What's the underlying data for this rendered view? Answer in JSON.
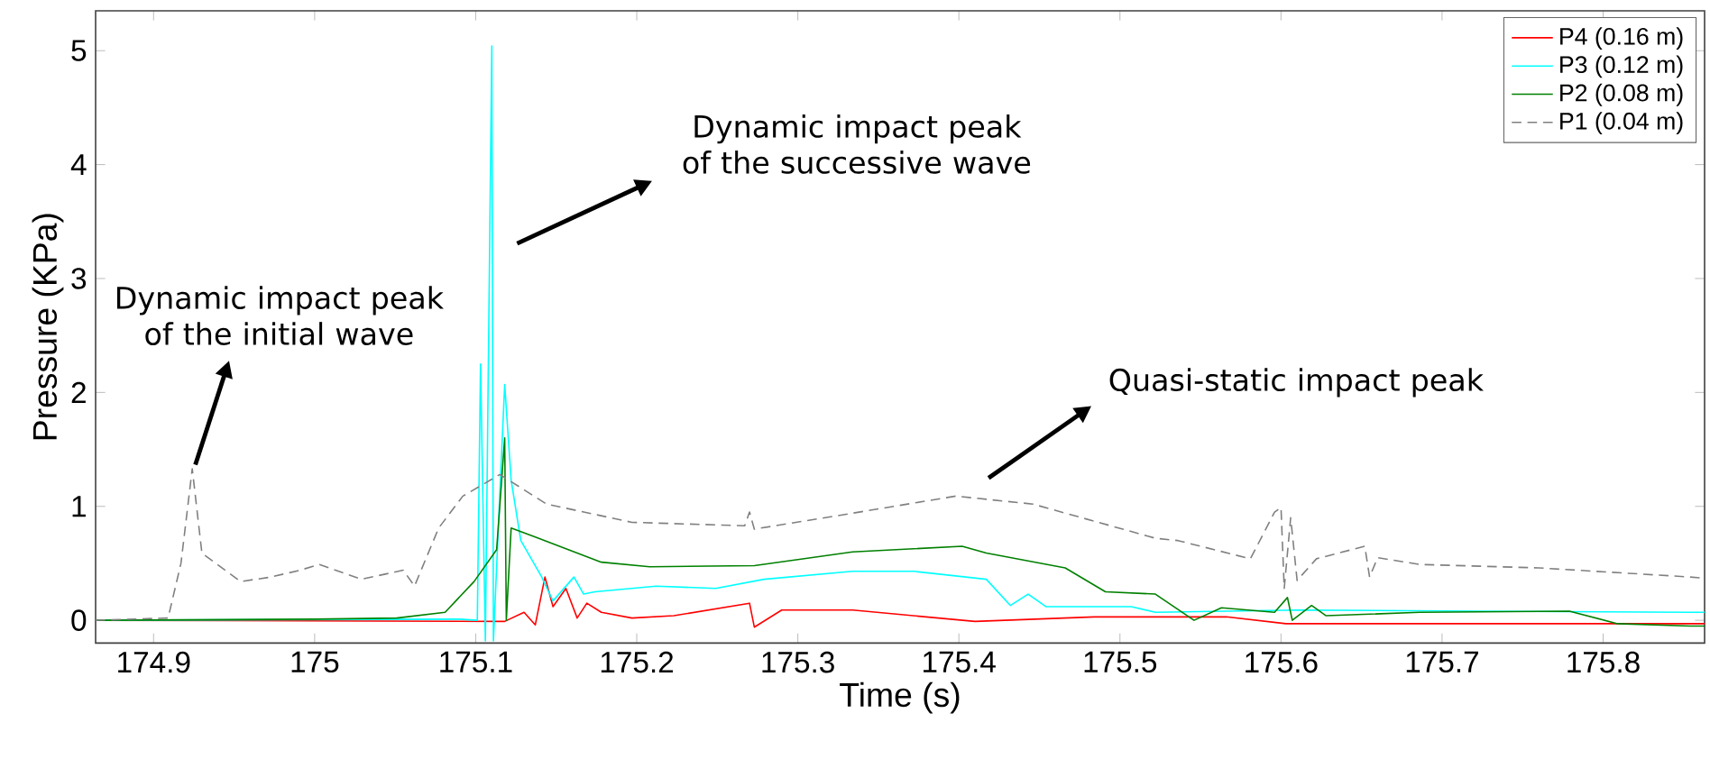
{
  "chart_data": {
    "type": "line",
    "xlabel": "Time (s)",
    "ylabel": "Pressure (KPa)",
    "xlim": [
      174.864,
      175.863
    ],
    "ylim": [
      -0.2,
      5.35
    ],
    "xticks": [
      174.9,
      175,
      175.1,
      175.2,
      175.3,
      175.4,
      175.5,
      175.6,
      175.7,
      175.8
    ],
    "yticks": [
      0,
      1,
      2,
      3,
      4,
      5
    ],
    "legend": "top right",
    "annotations": [
      "Dynamic impact peak of the initial wave",
      "Dynamic impact peak of the successive wave",
      "Quasi-static impact peak"
    ],
    "series": [
      {
        "name": "P4 (0.16 m)",
        "color": "#ff0000",
        "line_style": "solid",
        "x": [
          174.864,
          175.118,
          175.13,
          175.137,
          175.143,
          175.148,
          175.156,
          175.163,
          175.169,
          175.178,
          175.197,
          175.223,
          175.27,
          175.273,
          175.29,
          175.334,
          175.41,
          175.484,
          175.566,
          175.603,
          175.686,
          175.854,
          175.863
        ],
        "values": [
          0.0,
          -0.01,
          0.07,
          -0.04,
          0.38,
          0.12,
          0.28,
          0.02,
          0.15,
          0.07,
          0.02,
          0.04,
          0.15,
          -0.06,
          0.09,
          0.09,
          -0.01,
          0.03,
          0.03,
          -0.03,
          -0.03,
          -0.03,
          -0.03
        ]
      },
      {
        "name": "P3 (0.12 m)",
        "color": "#00ffff",
        "line_style": "solid",
        "x": [
          174.864,
          175.09,
          175.101,
          175.103,
          175.106,
          175.11,
          175.111,
          175.115,
          175.118,
          175.122,
          175.128,
          175.141,
          175.148,
          175.161,
          175.167,
          175.174,
          175.212,
          175.249,
          175.279,
          175.334,
          175.372,
          175.417,
          175.432,
          175.443,
          175.454,
          175.507,
          175.522,
          175.611,
          175.723,
          175.854,
          175.863
        ],
        "values": [
          0.0,
          0.01,
          0.0,
          2.25,
          -0.18,
          5.04,
          -0.18,
          1.12,
          2.07,
          1.23,
          0.7,
          0.38,
          0.17,
          0.38,
          0.23,
          0.25,
          0.3,
          0.28,
          0.36,
          0.43,
          0.43,
          0.36,
          0.13,
          0.23,
          0.12,
          0.12,
          0.07,
          0.09,
          0.08,
          0.07,
          0.07
        ]
      },
      {
        "name": "P2 (0.08 m)",
        "color": "#008000",
        "line_style": "solid",
        "x": [
          174.864,
          175.0,
          175.051,
          175.081,
          175.099,
          175.113,
          175.118,
          175.119,
          175.122,
          175.137,
          175.178,
          175.208,
          175.273,
          175.334,
          175.402,
          175.417,
          175.466,
          175.491,
          175.522,
          175.546,
          175.563,
          175.596,
          175.604,
          175.607,
          175.619,
          175.628,
          175.686,
          175.779,
          175.809,
          175.854,
          175.863
        ],
        "values": [
          0.0,
          0.01,
          0.02,
          0.07,
          0.34,
          0.62,
          1.6,
          0.0,
          0.81,
          0.73,
          0.51,
          0.47,
          0.48,
          0.6,
          0.65,
          0.59,
          0.46,
          0.25,
          0.23,
          0.0,
          0.11,
          0.07,
          0.2,
          0.0,
          0.13,
          0.04,
          0.07,
          0.08,
          -0.03,
          -0.05,
          -0.05
        ]
      },
      {
        "name": "P1 (0.04 m)",
        "color": "#808080",
        "line_style": "dashed",
        "x": [
          174.864,
          174.909,
          174.917,
          174.924,
          174.93,
          174.954,
          174.973,
          174.991,
          175.003,
          175.029,
          175.055,
          175.062,
          175.077,
          175.092,
          175.115,
          175.144,
          175.197,
          175.267,
          175.27,
          175.273,
          175.334,
          175.398,
          175.446,
          175.522,
          175.536,
          175.581,
          175.596,
          175.6,
          175.602,
          175.606,
          175.61,
          175.622,
          175.652,
          175.655,
          175.66,
          175.686,
          175.76,
          175.854,
          175.863
        ],
        "values": [
          0.0,
          0.02,
          0.5,
          1.33,
          0.59,
          0.34,
          0.38,
          0.44,
          0.49,
          0.36,
          0.44,
          0.3,
          0.81,
          1.09,
          1.28,
          1.02,
          0.86,
          0.83,
          0.95,
          0.8,
          0.94,
          1.09,
          1.02,
          0.72,
          0.7,
          0.54,
          0.95,
          0.99,
          0.28,
          0.9,
          0.35,
          0.54,
          0.65,
          0.38,
          0.55,
          0.49,
          0.46,
          0.38,
          0.37
        ]
      }
    ]
  }
}
